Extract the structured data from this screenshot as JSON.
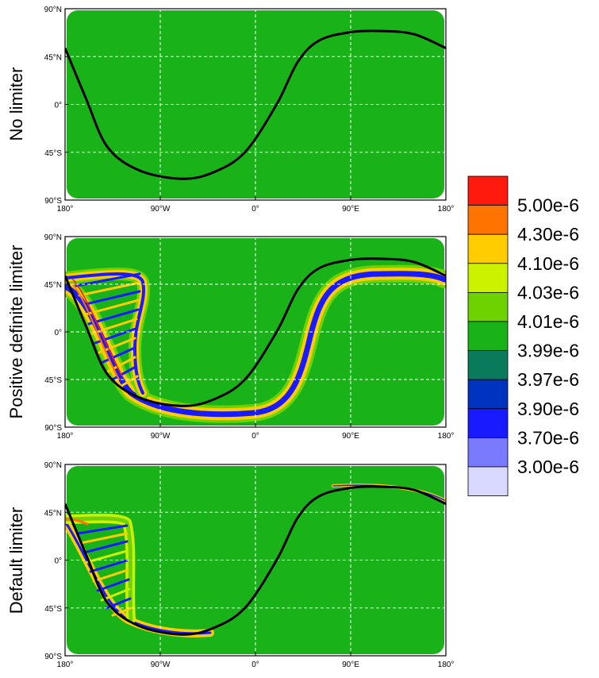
{
  "colors": {
    "background_field": "#19b319",
    "trajectory": "#000000",
    "grid": "#ffffff"
  },
  "chart_data": [
    {
      "type": "heatmap",
      "ylabel": "No limiter",
      "xticks": [
        "180°",
        "90°W",
        "0°",
        "90°E",
        "180°"
      ],
      "yticks": [
        "90°N",
        "45°N",
        "0°",
        "45°S",
        "90°S"
      ],
      "xlim": [
        -180,
        180
      ],
      "ylim": [
        -90,
        90
      ],
      "grid": true,
      "field_value": "3.99e-6 to 4.01e-6 (uniform)",
      "trajectory": [
        [
          -180,
          53
        ],
        [
          -160,
          5
        ],
        [
          -140,
          -40
        ],
        [
          -110,
          -62
        ],
        [
          -70,
          -70
        ],
        [
          -40,
          -64
        ],
        [
          -10,
          -45
        ],
        [
          20,
          0
        ],
        [
          40,
          40
        ],
        [
          60,
          60
        ],
        [
          90,
          68
        ],
        [
          120,
          69
        ],
        [
          150,
          66
        ],
        [
          180,
          53
        ]
      ]
    },
    {
      "type": "heatmap",
      "ylabel": "Positive definite limiter",
      "xticks": [
        "180°",
        "90°W",
        "0°",
        "90°E",
        "180°"
      ],
      "yticks": [
        "90°N",
        "45°N",
        "0°",
        "45°S",
        "90°S"
      ],
      "xlim": [
        -180,
        180
      ],
      "ylim": [
        -90,
        90
      ],
      "grid": true,
      "trajectory": [
        [
          -180,
          53
        ],
        [
          -160,
          5
        ],
        [
          -140,
          -40
        ],
        [
          -110,
          -62
        ],
        [
          -70,
          -70
        ],
        [
          -40,
          -64
        ],
        [
          -10,
          -45
        ],
        [
          20,
          0
        ],
        [
          40,
          40
        ],
        [
          60,
          60
        ],
        [
          90,
          68
        ],
        [
          120,
          69
        ],
        [
          150,
          66
        ],
        [
          180,
          53
        ]
      ]
    },
    {
      "type": "heatmap",
      "ylabel": "Default limiter",
      "xticks": [
        "180°",
        "90°W",
        "0°",
        "90°E",
        "180°"
      ],
      "yticks": [
        "90°N",
        "45°N",
        "0°",
        "45°S",
        "90°S"
      ],
      "xlim": [
        -180,
        180
      ],
      "ylim": [
        -90,
        90
      ],
      "grid": true,
      "trajectory": [
        [
          -180,
          53
        ],
        [
          -160,
          5
        ],
        [
          -140,
          -40
        ],
        [
          -110,
          -62
        ],
        [
          -70,
          -70
        ],
        [
          -40,
          -64
        ],
        [
          -10,
          -45
        ],
        [
          20,
          0
        ],
        [
          40,
          40
        ],
        [
          60,
          60
        ],
        [
          90,
          68
        ],
        [
          120,
          69
        ],
        [
          150,
          66
        ],
        [
          180,
          53
        ]
      ]
    }
  ],
  "colorbar": {
    "labels": [
      "5.00e-6",
      "4.30e-6",
      "4.10e-6",
      "4.03e-6",
      "4.01e-6",
      "3.99e-6",
      "3.97e-6",
      "3.90e-6",
      "3.70e-6",
      "3.00e-6"
    ],
    "colors": [
      "#ff1a0d",
      "#ff7300",
      "#ffcc00",
      "#ccf200",
      "#6ed100",
      "#19b319",
      "#0a7a5c",
      "#0033bf",
      "#1a1aff",
      "#7a7aff",
      "#d9d9ff"
    ]
  }
}
